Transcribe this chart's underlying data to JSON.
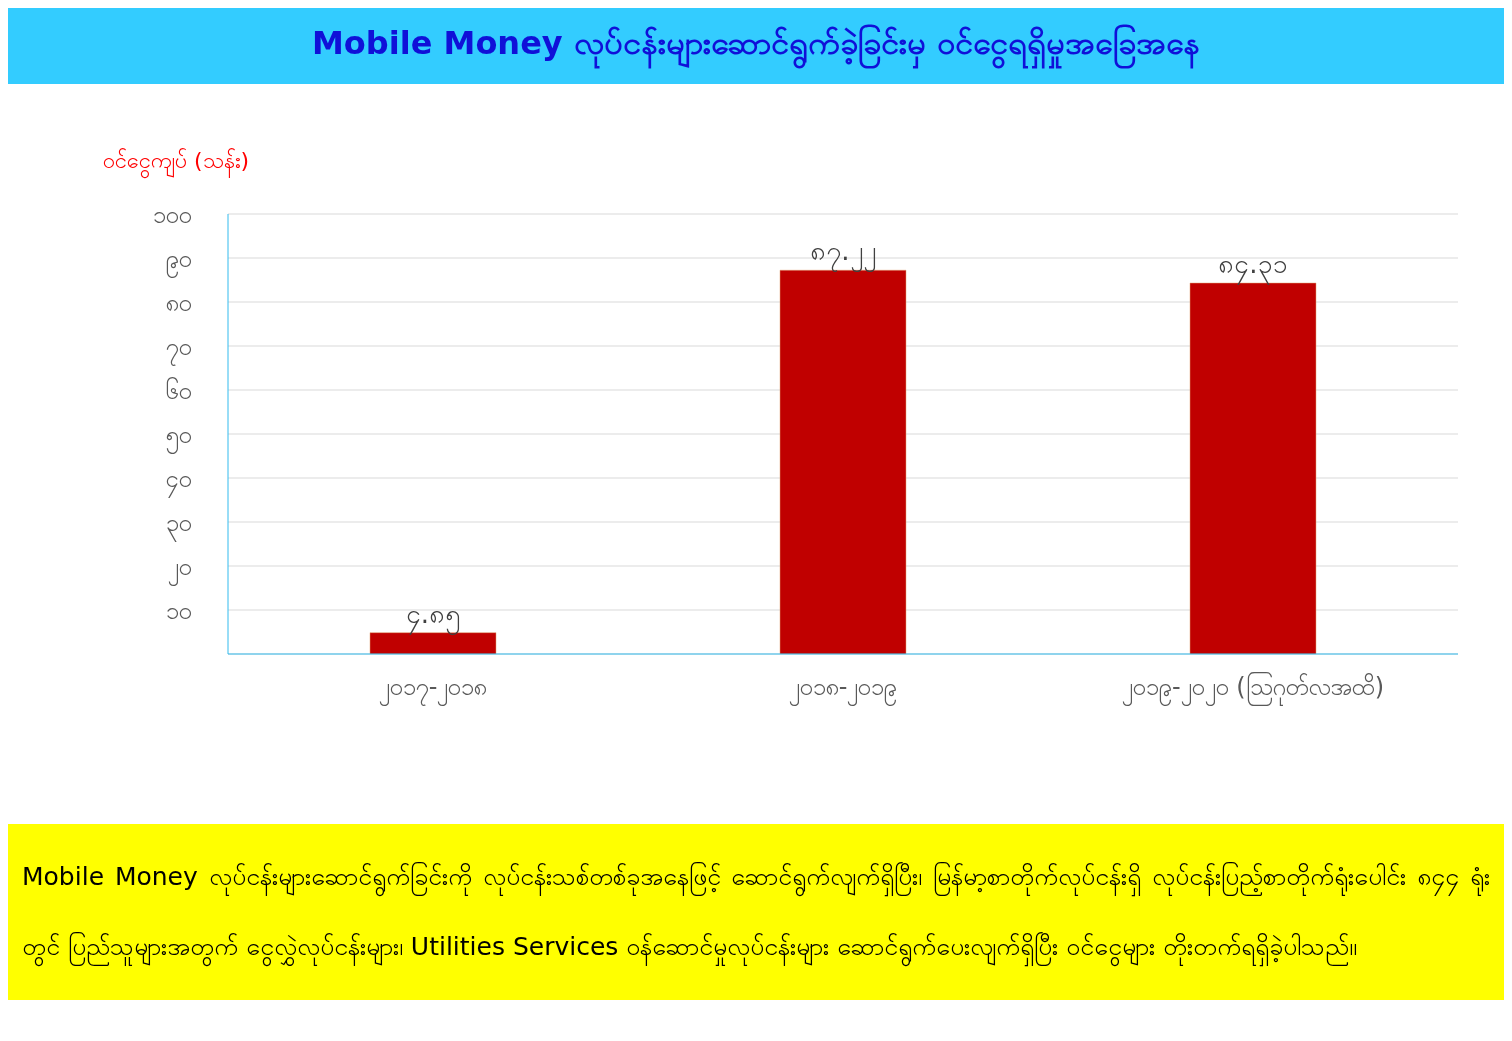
{
  "chart_data": {
    "type": "bar",
    "title": "Mobile Money လုပ်ငန်းများဆောင်ရွက်ခဲ့ခြင်းမှ ဝင်ငွေရရှိမှုအခြေအနေ",
    "ylabel": "ဝင်ငွေကျပ် (သန်း)",
    "categories": [
      "၂၀၁၇-၂၀၁၈",
      "၂၀၁၈-၂၀၁၉",
      "၂၀၁၉-၂၀၂၀ (ဩဂုတ်လအထိ)"
    ],
    "values": [
      4.85,
      87.22,
      84.31
    ],
    "value_labels": [
      "၄.၈၅",
      "၈၇.၂၂",
      "၈၄.၃၁"
    ],
    "color": "#c00000",
    "ylim": [
      0,
      100
    ],
    "yticks": [
      {
        "value": 0,
        "label": null
      },
      {
        "value": 10,
        "label": "၁၀"
      },
      {
        "value": 20,
        "label": "၂၀"
      },
      {
        "value": 30,
        "label": "၃၀"
      },
      {
        "value": 40,
        "label": "၄၀"
      },
      {
        "value": 50,
        "label": "၅၀"
      },
      {
        "value": 60,
        "label": "၆၀"
      },
      {
        "value": 70,
        "label": "၇၀"
      },
      {
        "value": 80,
        "label": "၈၀"
      },
      {
        "value": 90,
        "label": "၉၀"
      },
      {
        "value": 100,
        "label": "၁၀၀"
      }
    ],
    "grid": "y",
    "legend": false,
    "annotations": [
      "Mobile Money လုပ်ငန်းများဆောင်ရွက်ခြင်းကို လုပ်ငန်းသစ်တစ်ခုအနေဖြင့် ဆောင်ရွက်လျက်ရှိပြီး၊ မြန်မာ့စာတိုက်လုပ်ငန်းရှိ လုပ်ငန်းပြည့်စာတိုက်ရုံးပေါင်း ၈၄၄ ရုံးတွင် ပြည်သူများအတွက် ငွေလွှဲလုပ်ငန်းများ၊ Utilities Services ဝန်ဆောင်မှုလုပ်ငန်းများ ဆောင်ရွက်ပေးလျက်ရှိပြီး ဝင်ငွေများ တိုးတက်ရရှိခဲ့ပါသည်။"
    ]
  }
}
